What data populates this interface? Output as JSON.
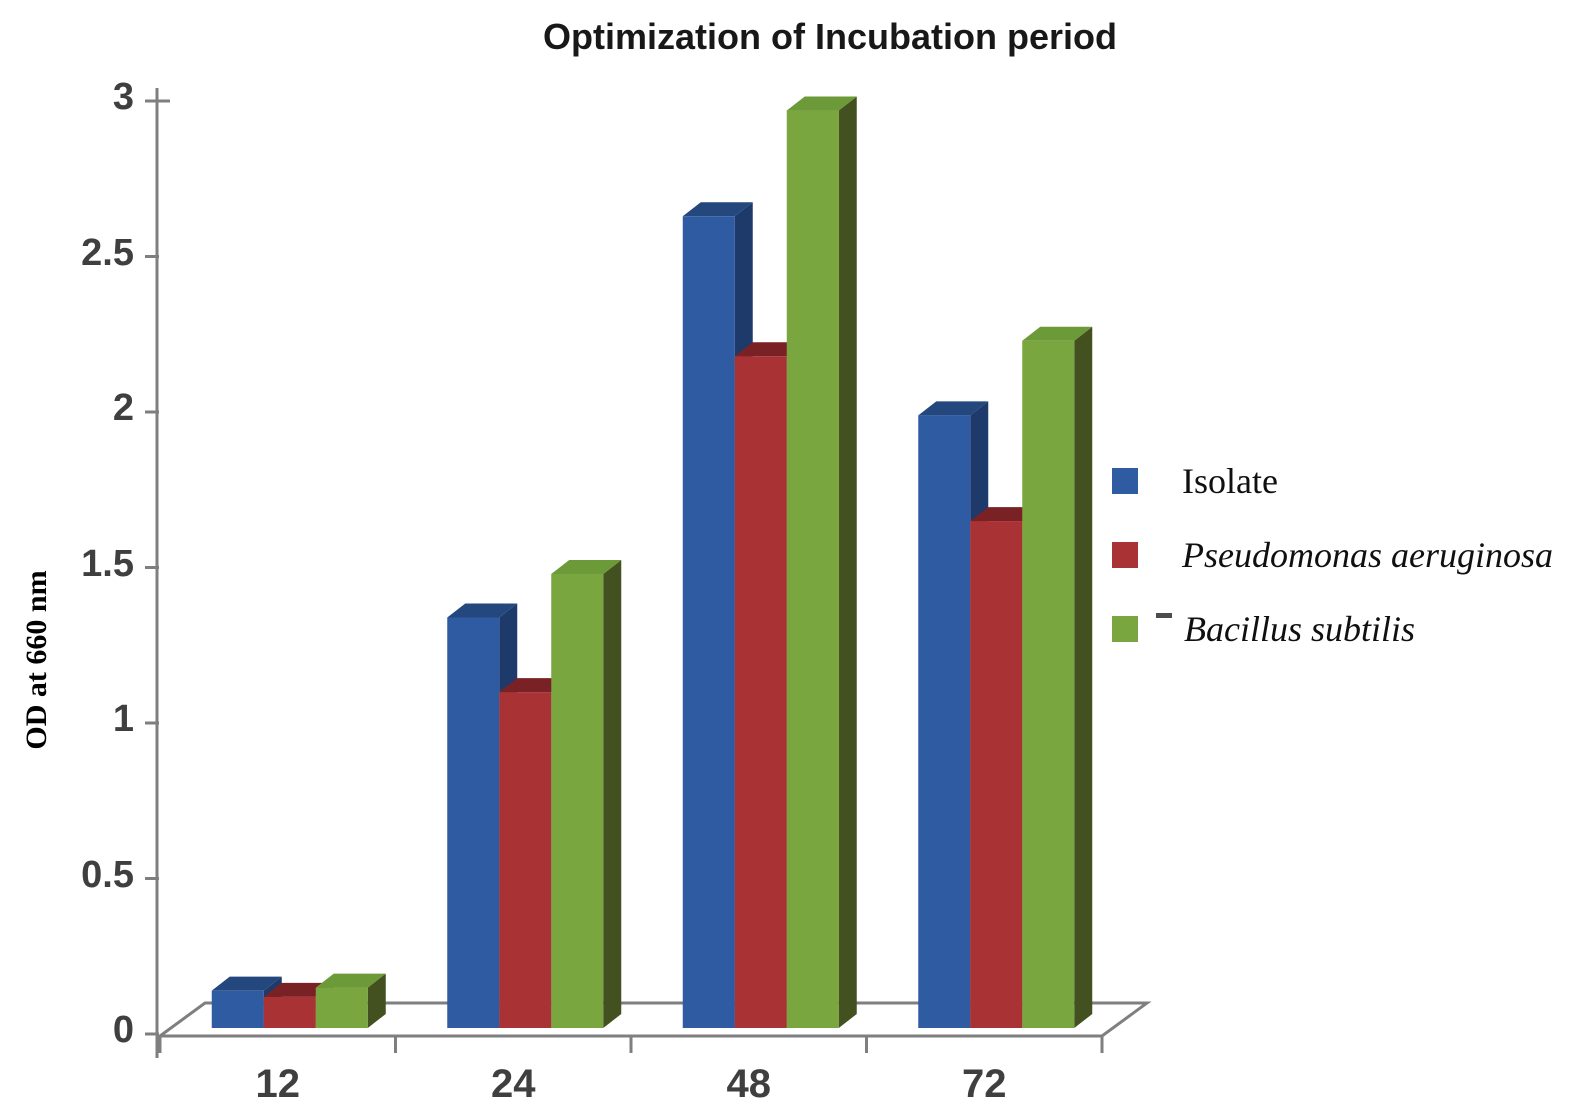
{
  "chart_data": {
    "type": "bar",
    "effect": "3d-clustered-column",
    "title": "Optimization of Incubation period",
    "xlabel": "",
    "ylabel": "OD at 660 nm",
    "ylim": [
      0,
      3
    ],
    "ytick_step": 0.5,
    "y_ticks": [
      "0",
      "0.5",
      "1",
      "1.5",
      "2",
      "2.5",
      "3"
    ],
    "categories": [
      "12",
      "24",
      "48",
      "72"
    ],
    "series": [
      {
        "name": "Isolate",
        "italic": false,
        "values": [
          0.12,
          1.32,
          2.61,
          1.97
        ],
        "color": {
          "front": "#2F5BA3",
          "top": "#24477E",
          "side": "#1D3A6B"
        }
      },
      {
        "name": "Pseudomonas aeruginosa",
        "italic": true,
        "values": [
          0.1,
          1.08,
          2.16,
          1.63
        ],
        "color": {
          "front": "#A93234",
          "top": "#7A2125",
          "side": "#641A1D"
        }
      },
      {
        "name": "Bacillus subtilis",
        "italic": true,
        "values": [
          0.13,
          1.46,
          2.95,
          2.21
        ],
        "color": {
          "front": "#7AA63F",
          "top": "#6D9A38",
          "side": "#42511F"
        }
      }
    ],
    "legend_position": "right",
    "grid": false,
    "axis_color": "#7F7F7F",
    "tick_label_color": "#3F3F3F"
  }
}
